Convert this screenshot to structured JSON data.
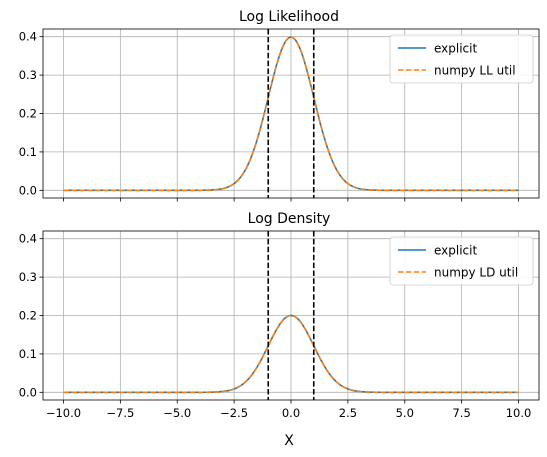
{
  "chart_data": [
    {
      "type": "line",
      "title": "Log Likelihood",
      "xlim": [
        -10.9,
        10.9
      ],
      "ylim": [
        -0.02,
        0.42
      ],
      "xticks": [
        -10,
        -7.5,
        -5,
        -2.5,
        0,
        2.5,
        5,
        7.5,
        10
      ],
      "xtick_labels": [],
      "yticks": [
        0,
        0.1,
        0.2,
        0.3,
        0.4
      ],
      "ytick_labels": [
        "0.0",
        "0.1",
        "0.2",
        "0.3",
        "0.4"
      ],
      "grid": true,
      "legend_position": "top-right",
      "series": [
        {
          "name": "explicit",
          "style": "solid",
          "color": "#1f77b4",
          "x_range": [
            -10,
            10
          ],
          "curve": "normal",
          "mean": 0,
          "std": 1,
          "peak": 0.399
        },
        {
          "name": "numpy LL util",
          "style": "dashed",
          "color": "#ff7f0e",
          "x_range": [
            -10,
            10
          ],
          "curve": "normal",
          "mean": 0,
          "std": 1,
          "peak": 0.399
        }
      ],
      "vlines": [
        {
          "x": -1,
          "style": "dashed",
          "color": "#000000"
        },
        {
          "x": 1,
          "style": "dashed",
          "color": "#000000"
        }
      ]
    },
    {
      "type": "line",
      "title": "Log Density",
      "xlim": [
        -10.9,
        10.9
      ],
      "ylim": [
        -0.02,
        0.42
      ],
      "xticks": [
        -10,
        -7.5,
        -5,
        -2.5,
        0,
        2.5,
        5,
        7.5,
        10
      ],
      "xtick_labels": [
        "−10.0",
        "−7.5",
        "−5.0",
        "−2.5",
        "0.0",
        "2.5",
        "5.0",
        "7.5",
        "10.0"
      ],
      "yticks": [
        0,
        0.1,
        0.2,
        0.3,
        0.4
      ],
      "ytick_labels": [
        "0.0",
        "0.1",
        "0.2",
        "0.3",
        "0.4"
      ],
      "xlabel": "X",
      "grid": true,
      "legend_position": "top-right",
      "series": [
        {
          "name": "explicit",
          "style": "solid",
          "color": "#1f77b4",
          "x_range": [
            -10,
            10
          ],
          "curve": "normal",
          "mean": 0,
          "std": 1,
          "peak": 0.2
        },
        {
          "name": "numpy LD util",
          "style": "dashed",
          "color": "#ff7f0e",
          "x_range": [
            -10,
            10
          ],
          "curve": "normal",
          "mean": 0,
          "std": 1,
          "peak": 0.2
        }
      ],
      "vlines": [
        {
          "x": -1,
          "style": "dashed",
          "color": "#000000"
        },
        {
          "x": 1,
          "style": "dashed",
          "color": "#000000"
        }
      ]
    }
  ]
}
